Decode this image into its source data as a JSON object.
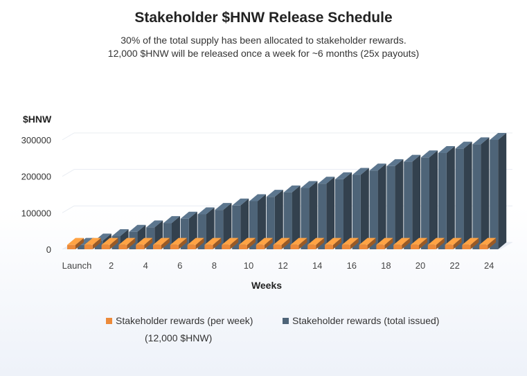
{
  "title": "Stakeholder $HNW Release Schedule",
  "subtitle_line1": "30% of the total supply has been allocated to stakeholder rewards.",
  "subtitle_line2": "12,000 $HNW will be released once a week for ~6 months (25x payouts)",
  "legend": {
    "per_week": "Stakeholder rewards (per week)",
    "per_week_note": "(12,000 $HNW)",
    "total_issued": "Stakeholder rewards (total issued)"
  },
  "colors": {
    "per_week": "#ec8a3a",
    "total_issued": "#4e6478",
    "grid": "#e8ecf2",
    "floor": "#dde3ec"
  },
  "chart_data": {
    "type": "bar",
    "title": "Stakeholder $HNW Release Schedule",
    "xlabel": "Weeks",
    "ylabel": "$HNW",
    "ylim": [
      0,
      300000
    ],
    "yticks": [
      "0",
      "100000",
      "200000",
      "300000"
    ],
    "xtick_labels": [
      "Launch",
      "2",
      "4",
      "6",
      "8",
      "10",
      "12",
      "14",
      "16",
      "18",
      "20",
      "22",
      "24"
    ],
    "categories": [
      "Launch",
      "1",
      "2",
      "3",
      "4",
      "5",
      "6",
      "7",
      "8",
      "9",
      "10",
      "11",
      "12",
      "13",
      "14",
      "15",
      "16",
      "17",
      "18",
      "19",
      "20",
      "21",
      "22",
      "23",
      "24"
    ],
    "series": [
      {
        "name": "Stakeholder rewards (per week)",
        "values": [
          12000,
          12000,
          12000,
          12000,
          12000,
          12000,
          12000,
          12000,
          12000,
          12000,
          12000,
          12000,
          12000,
          12000,
          12000,
          12000,
          12000,
          12000,
          12000,
          12000,
          12000,
          12000,
          12000,
          12000,
          12000
        ]
      },
      {
        "name": "Stakeholder rewards (total issued)",
        "values": [
          12000,
          24000,
          36000,
          48000,
          60000,
          72000,
          84000,
          96000,
          108000,
          120000,
          132000,
          144000,
          156000,
          168000,
          180000,
          192000,
          204000,
          216000,
          228000,
          240000,
          252000,
          264000,
          276000,
          288000,
          300000
        ]
      }
    ],
    "grid": true,
    "legend_position": "bottom"
  }
}
